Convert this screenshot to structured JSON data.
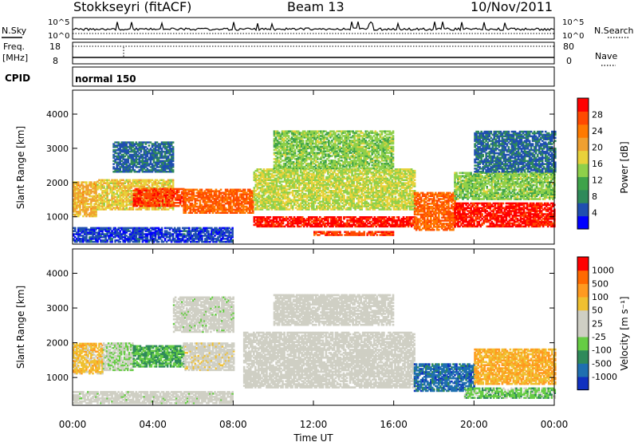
{
  "header": {
    "station": "Stokkseyri (fitACF)",
    "beam": "Beam 13",
    "date": "10/Nov/2011"
  },
  "status_panels": {
    "nsky_label": "N.Sky",
    "nsky_ticks": [
      "10^5",
      "10^0"
    ],
    "nsearch_label": "N.Search",
    "nsearch_ticks": [
      "10^5",
      "10^0"
    ],
    "freq_label": "Freq.",
    "freq_unit": "[MHz]",
    "freq_ticks": [
      "18",
      "8"
    ],
    "nave_label": "Nave",
    "nave_ticks": [
      "80",
      "0"
    ],
    "cpid_label": "CPID",
    "cpid_value": "normal 150"
  },
  "colors": {
    "power_scale": [
      "#0000ff",
      "#1f4fb0",
      "#2f8a5a",
      "#3fa34a",
      "#8fd04a",
      "#e8d23a",
      "#f0a030",
      "#ff7a00",
      "#ff4a00",
      "#ff0000"
    ],
    "velocity_scale": [
      "#1030c0",
      "#1f6fb0",
      "#2f8a5a",
      "#66cc44",
      "#cfcfc4",
      "#cfcfc4",
      "#f0c030",
      "#ff9a20",
      "#ff6a00",
      "#ff0000"
    ]
  },
  "chart_data": [
    {
      "type": "heatmap",
      "title": "Power",
      "ylabel": "Slant Range [km]",
      "xlabel": "Time UT",
      "x_ticks": [
        "00:00",
        "04:00",
        "08:00",
        "12:00",
        "16:00",
        "20:00",
        "00:00"
      ],
      "y_ticks": [
        "1000",
        "2000",
        "3000",
        "4000"
      ],
      "ylim": [
        200,
        4700
      ],
      "xlim": [
        0,
        24
      ],
      "colorbar": {
        "label": "Power [dB]",
        "ticks": [
          "28",
          "24",
          "20",
          "16",
          "12",
          "8",
          "4"
        ],
        "range": [
          0,
          32
        ]
      },
      "echo_bands": [
        {
          "t0": 0.0,
          "t1": 1.2,
          "r0": 1000,
          "r1": 2000,
          "value": 20
        },
        {
          "t0": 1.2,
          "t1": 5.0,
          "r0": 1200,
          "r1": 2100,
          "value": 18
        },
        {
          "t0": 3.0,
          "t1": 5.5,
          "r0": 1300,
          "r1": 1800,
          "value": 28
        },
        {
          "t0": 5.5,
          "t1": 9.0,
          "r0": 1100,
          "r1": 1800,
          "value": 26
        },
        {
          "t0": 9.0,
          "t1": 17.0,
          "r0": 700,
          "r1": 1000,
          "value": 30
        },
        {
          "t0": 9.0,
          "t1": 17.0,
          "r0": 1200,
          "r1": 2400,
          "value": 16
        },
        {
          "t0": 12.0,
          "t1": 16.0,
          "r0": 450,
          "r1": 560,
          "value": 28
        },
        {
          "t0": 17.0,
          "t1": 19.0,
          "r0": 600,
          "r1": 1700,
          "value": 26
        },
        {
          "t0": 19.0,
          "t1": 24.0,
          "r0": 700,
          "r1": 1400,
          "value": 30
        },
        {
          "t0": 19.0,
          "t1": 24.0,
          "r0": 1500,
          "r1": 2300,
          "value": 14
        },
        {
          "t0": 0.0,
          "t1": 8.0,
          "r0": 250,
          "r1": 700,
          "value": 4
        },
        {
          "t0": 2.0,
          "t1": 5.0,
          "r0": 2300,
          "r1": 3200,
          "value": 6
        },
        {
          "t0": 10.0,
          "t1": 16.0,
          "r0": 2400,
          "r1": 3500,
          "value": 14
        },
        {
          "t0": 20.0,
          "t1": 24.0,
          "r0": 2300,
          "r1": 3500,
          "value": 6
        }
      ]
    },
    {
      "type": "heatmap",
      "title": "Velocity",
      "ylabel": "Slant Range [km]",
      "xlabel": "Time UT",
      "x_ticks": [
        "00:00",
        "04:00",
        "08:00",
        "12:00",
        "16:00",
        "20:00",
        "00:00"
      ],
      "y_ticks": [
        "1000",
        "2000",
        "3000",
        "4000"
      ],
      "ylim": [
        200,
        4700
      ],
      "xlim": [
        0,
        24
      ],
      "colorbar": {
        "label": "Velocity [m s⁻¹]",
        "ticks": [
          "1000",
          "500",
          "100",
          "50",
          "25",
          "-25",
          "-100",
          "-500",
          "-1000"
        ],
        "range": [
          -1000,
          1000
        ]
      },
      "echo_bands": [
        {
          "t0": 0.0,
          "t1": 1.5,
          "r0": 1100,
          "r1": 2000,
          "value": 300
        },
        {
          "t0": 1.5,
          "t1": 3.0,
          "r0": 1200,
          "r1": 2000,
          "value": -150
        },
        {
          "t0": 3.0,
          "t1": 5.5,
          "r0": 1300,
          "r1": 1900,
          "value": -400
        },
        {
          "t0": 5.5,
          "t1": 8.0,
          "r0": 1200,
          "r1": 2000,
          "value": 80
        },
        {
          "t0": 8.5,
          "t1": 17.0,
          "r0": 700,
          "r1": 2300,
          "value": 0
        },
        {
          "t0": 10.0,
          "t1": 16.0,
          "r0": 2500,
          "r1": 3400,
          "value": 0
        },
        {
          "t0": 17.0,
          "t1": 20.0,
          "r0": 600,
          "r1": 1400,
          "value": -700
        },
        {
          "t0": 20.0,
          "t1": 24.0,
          "r0": 800,
          "r1": 1800,
          "value": 400
        },
        {
          "t0": 19.5,
          "t1": 24.0,
          "r0": 400,
          "r1": 700,
          "value": -300
        },
        {
          "t0": 0.0,
          "t1": 8.0,
          "r0": 250,
          "r1": 600,
          "value": -60
        },
        {
          "t0": 5.0,
          "t1": 8.0,
          "r0": 2300,
          "r1": 3300,
          "value": -60
        }
      ]
    }
  ]
}
